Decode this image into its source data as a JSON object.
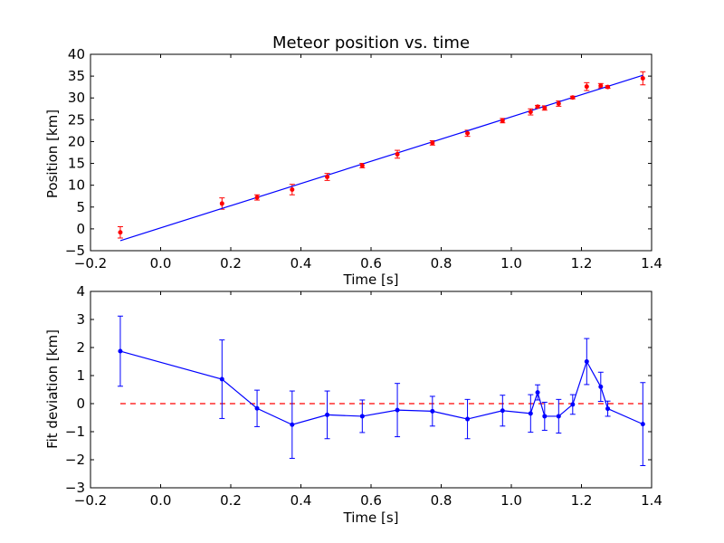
{
  "chart_data": [
    {
      "type": "scatter",
      "title": "Meteor position vs. time",
      "xlabel": "Time [s]",
      "ylabel": "Position [km]",
      "xlim": [
        -0.2,
        1.4
      ],
      "ylim": [
        -5,
        40
      ],
      "xticks": [
        "−0.2",
        "0.0",
        "0.2",
        "0.4",
        "0.6",
        "0.8",
        "1.0",
        "1.2",
        "1.4"
      ],
      "xtick_values": [
        -0.2,
        0.0,
        0.2,
        0.4,
        0.6,
        0.8,
        1.0,
        1.2,
        1.4
      ],
      "yticks": [
        "−5",
        "0",
        "5",
        "10",
        "15",
        "20",
        "25",
        "30",
        "35",
        "40"
      ],
      "ytick_values": [
        -5,
        0,
        5,
        10,
        15,
        20,
        25,
        30,
        35,
        40
      ],
      "grid": false,
      "colors": {
        "points": "#ff0000",
        "fit": "#0000ff"
      },
      "points": [
        {
          "x": -0.115,
          "y": -0.8,
          "err": 1.3
        },
        {
          "x": 0.175,
          "y": 5.8,
          "err": 1.3
        },
        {
          "x": 0.275,
          "y": 7.2,
          "err": 0.6
        },
        {
          "x": 0.375,
          "y": 9.0,
          "err": 1.2
        },
        {
          "x": 0.475,
          "y": 11.9,
          "err": 0.8
        },
        {
          "x": 0.575,
          "y": 14.5,
          "err": 0.5
        },
        {
          "x": 0.675,
          "y": 17.1,
          "err": 0.9
        },
        {
          "x": 0.775,
          "y": 19.7,
          "err": 0.5
        },
        {
          "x": 0.875,
          "y": 21.9,
          "err": 0.7
        },
        {
          "x": 0.975,
          "y": 24.8,
          "err": 0.5
        },
        {
          "x": 1.055,
          "y": 26.8,
          "err": 0.7
        },
        {
          "x": 1.075,
          "y": 28.0,
          "err": 0.3
        },
        {
          "x": 1.095,
          "y": 27.7,
          "err": 0.5
        },
        {
          "x": 1.135,
          "y": 28.7,
          "err": 0.6
        },
        {
          "x": 1.175,
          "y": 30.1,
          "err": 0.3
        },
        {
          "x": 1.215,
          "y": 32.6,
          "err": 0.9
        },
        {
          "x": 1.255,
          "y": 32.8,
          "err": 0.5
        },
        {
          "x": 1.275,
          "y": 32.5,
          "err": 0.3
        },
        {
          "x": 1.375,
          "y": 34.5,
          "err": 1.5
        }
      ],
      "fit_line": {
        "x": [
          -0.115,
          1.375
        ],
        "y": [
          -2.7,
          35.2
        ]
      }
    },
    {
      "type": "line",
      "title": "",
      "xlabel": "Time [s]",
      "ylabel": "Fit deviation [km]",
      "xlim": [
        -0.2,
        1.4
      ],
      "ylim": [
        -3,
        4
      ],
      "xticks": [
        "−0.2",
        "0.0",
        "0.2",
        "0.4",
        "0.6",
        "0.8",
        "1.0",
        "1.2",
        "1.4"
      ],
      "xtick_values": [
        -0.2,
        0.0,
        0.2,
        0.4,
        0.6,
        0.8,
        1.0,
        1.2,
        1.4
      ],
      "yticks": [
        "−3",
        "−2",
        "−1",
        "0",
        "1",
        "2",
        "3",
        "4"
      ],
      "ytick_values": [
        -3,
        -2,
        -1,
        0,
        1,
        2,
        3,
        4
      ],
      "grid": false,
      "colors": {
        "series": "#0000ff",
        "reference": "#ff0000"
      },
      "reference_y": 0,
      "points": [
        {
          "x": -0.115,
          "y": 1.87,
          "err": 1.25
        },
        {
          "x": 0.175,
          "y": 0.87,
          "err": 1.4
        },
        {
          "x": 0.275,
          "y": -0.17,
          "err": 0.65
        },
        {
          "x": 0.375,
          "y": -0.75,
          "err": 1.2
        },
        {
          "x": 0.475,
          "y": -0.4,
          "err": 0.85
        },
        {
          "x": 0.575,
          "y": -0.45,
          "err": 0.58
        },
        {
          "x": 0.675,
          "y": -0.23,
          "err": 0.95
        },
        {
          "x": 0.775,
          "y": -0.27,
          "err": 0.53
        },
        {
          "x": 0.875,
          "y": -0.55,
          "err": 0.7
        },
        {
          "x": 0.975,
          "y": -0.25,
          "err": 0.55
        },
        {
          "x": 1.055,
          "y": -0.35,
          "err": 0.67
        },
        {
          "x": 1.075,
          "y": 0.4,
          "err": 0.27
        },
        {
          "x": 1.095,
          "y": -0.45,
          "err": 0.5
        },
        {
          "x": 1.135,
          "y": -0.45,
          "err": 0.6
        },
        {
          "x": 1.175,
          "y": -0.03,
          "err": 0.35
        },
        {
          "x": 1.215,
          "y": 1.5,
          "err": 0.82
        },
        {
          "x": 1.255,
          "y": 0.6,
          "err": 0.52
        },
        {
          "x": 1.275,
          "y": -0.18,
          "err": 0.27
        },
        {
          "x": 1.375,
          "y": -0.73,
          "err": 1.48
        }
      ]
    }
  ]
}
